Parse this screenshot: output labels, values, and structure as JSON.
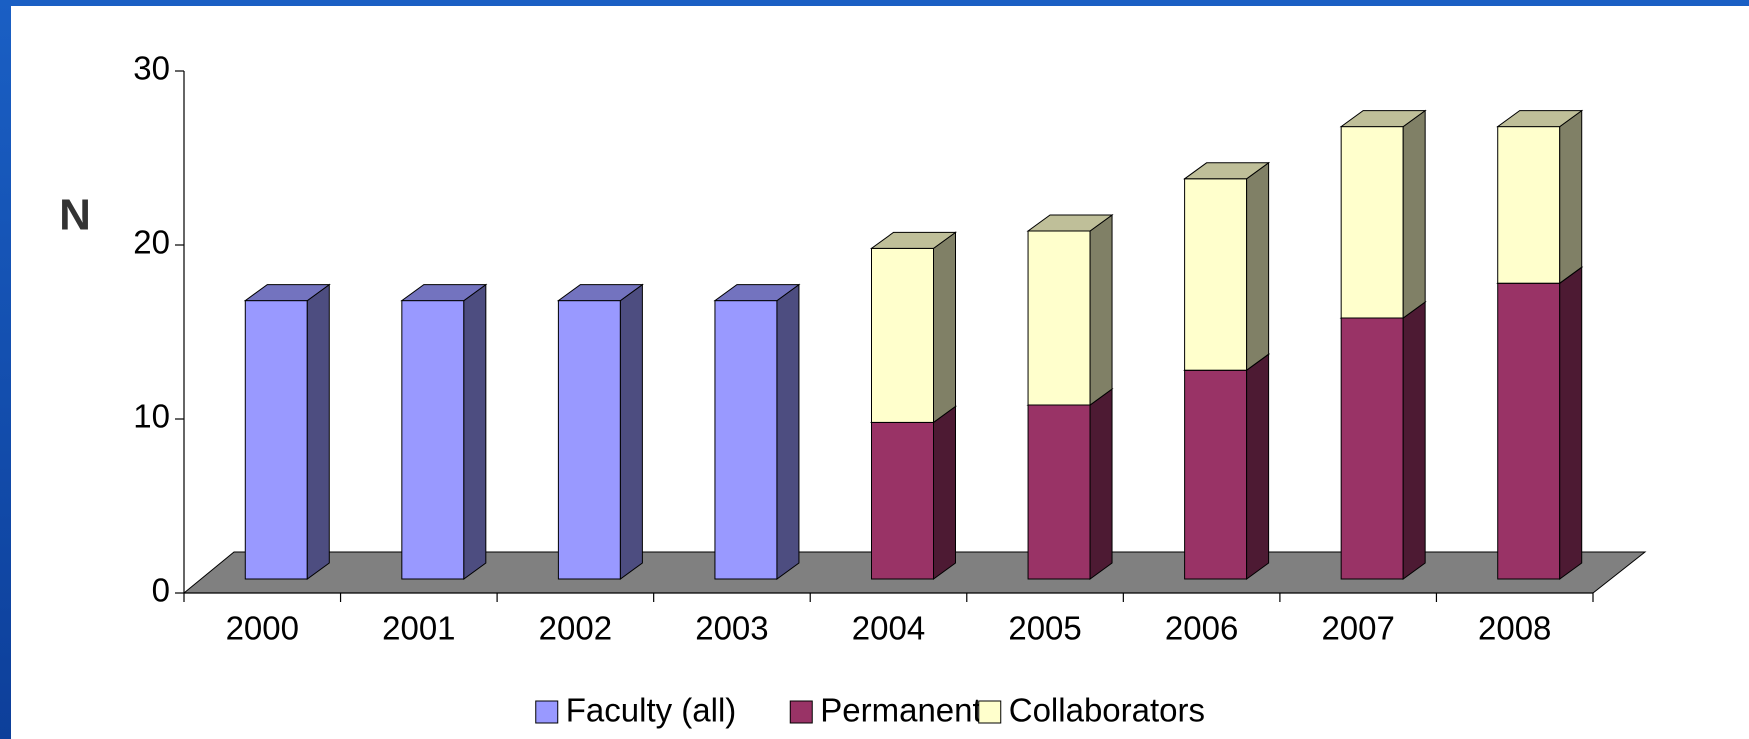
{
  "chart_data": {
    "type": "bar3d_stacked",
    "y_label": "N",
    "categories": [
      "2000",
      "2001",
      "2002",
      "2003",
      "2004",
      "2005",
      "2006",
      "2007",
      "2008"
    ],
    "series": [
      {
        "name": "Faculty (all)",
        "color": "#9999ff",
        "values": [
          16,
          16,
          16,
          16,
          null,
          null,
          null,
          null,
          null
        ]
      },
      {
        "name": "Permanent",
        "color": "#993366",
        "values": [
          null,
          null,
          null,
          null,
          9,
          10,
          12,
          15,
          17
        ]
      },
      {
        "name": "Collaborators",
        "color": "#ffffcc",
        "values": [
          null,
          null,
          null,
          null,
          10,
          10,
          11,
          11,
          9
        ]
      }
    ],
    "ylim": [
      0,
      30
    ],
    "yticks": [
      0,
      10,
      20,
      30
    ],
    "legend": "bottom"
  }
}
